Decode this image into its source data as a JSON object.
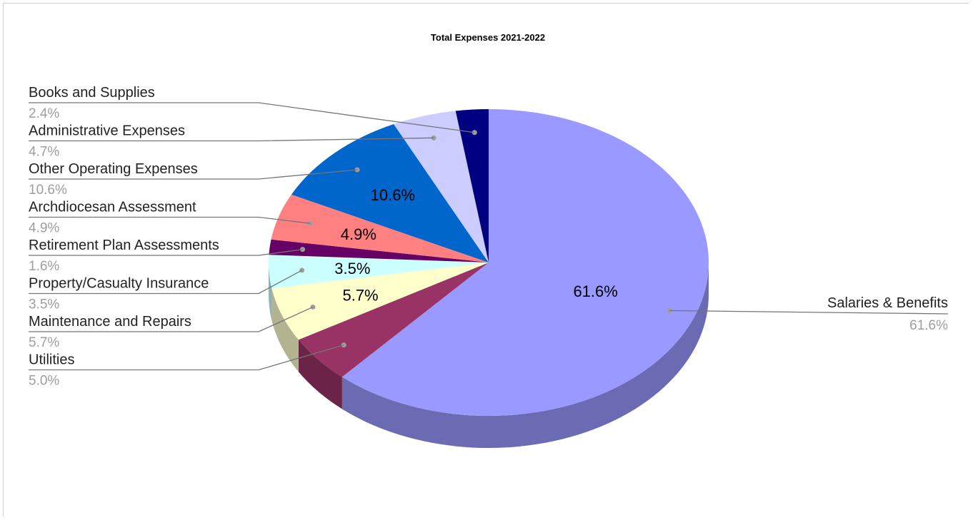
{
  "chart_data": {
    "type": "pie",
    "title": "Total Expenses 2021-2022",
    "slices": [
      {
        "label": "Salaries & Benefits",
        "value": 61.6,
        "display": "61.6%",
        "color": "#9999ff"
      },
      {
        "label": "Utilities",
        "value": 5.0,
        "display": "5.0%",
        "color": "#993366"
      },
      {
        "label": "Maintenance and Repairs",
        "value": 5.7,
        "display": "5.7%",
        "color": "#ffffcc"
      },
      {
        "label": "Property/Casualty Insurance",
        "value": 3.5,
        "display": "3.5%",
        "color": "#ccffff"
      },
      {
        "label": "Retirement Plan Assessments",
        "value": 1.6,
        "display": "1.6%",
        "color": "#660066"
      },
      {
        "label": "Archdiocesan Assessment",
        "value": 4.9,
        "display": "4.9%",
        "color": "#ff8080"
      },
      {
        "label": "Other Operating Expenses",
        "value": 10.6,
        "display": "10.6%",
        "color": "#0066cc"
      },
      {
        "label": "Administrative Expenses",
        "value": 4.7,
        "display": "4.7%",
        "color": "#ccccff"
      },
      {
        "label": "Books and Supplies",
        "value": 2.4,
        "display": "2.4%",
        "color": "#000080"
      }
    ],
    "inside_labels": [
      "61.6%",
      "5.7%",
      "3.5%",
      "4.9%",
      "10.6%"
    ],
    "legend": "callout labels"
  }
}
